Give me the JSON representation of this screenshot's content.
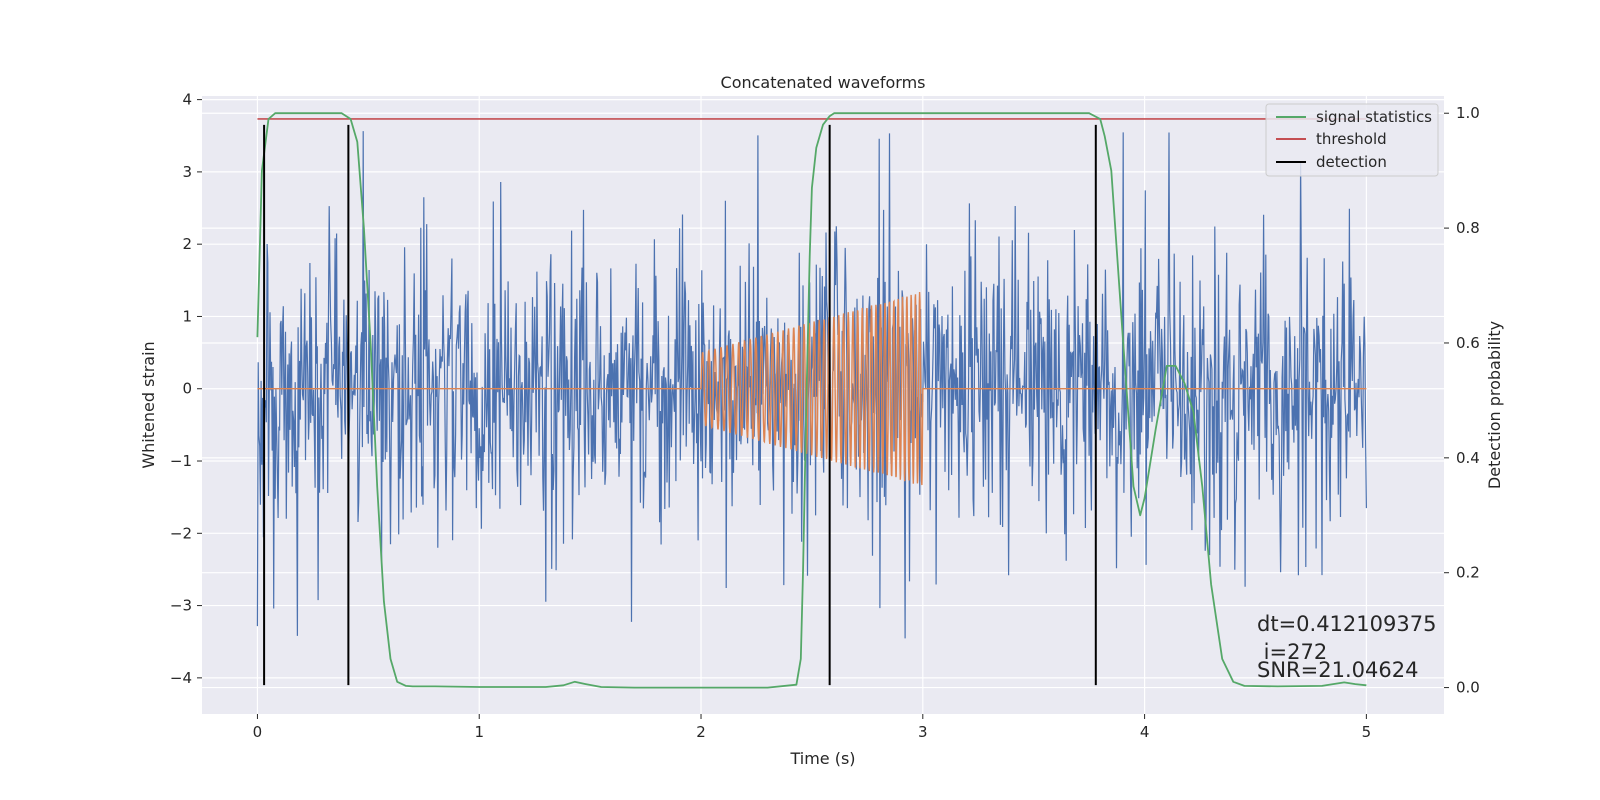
{
  "chart_data": {
    "type": "line",
    "title": "Concatenated waveforms",
    "xlabel": "Time (s)",
    "ylabel": "Whitened strain",
    "y2label": "Detection probability",
    "xlim": [
      -0.25,
      5.35
    ],
    "ylim": [
      -4.5,
      4.05
    ],
    "y2lim": [
      -0.046,
      1.03
    ],
    "x_ticks": [
      0,
      1,
      2,
      3,
      4,
      5
    ],
    "y_ticks": [
      4,
      3,
      2,
      1,
      0,
      -1,
      -2,
      -3,
      -4
    ],
    "y2_ticks": [
      1.0,
      0.8,
      0.6,
      0.4,
      0.2,
      0.0
    ],
    "grid": true,
    "legend_position": "top-right",
    "colors": {
      "plot_background": "#eaeaf2",
      "grid": "#ffffff",
      "strain": "#4c72b0",
      "injection": "#dd8452",
      "signal_statistics": "#55a868",
      "threshold": "#c44e52",
      "detection": "#000000"
    },
    "strain": {
      "x_range": [
        0,
        5
      ],
      "envelope_typical": 1.2,
      "spike_max": 3.7,
      "spike_min": -4.1
    },
    "injection": {
      "x_range": [
        2.0,
        3.0
      ],
      "amplitude_start": 0.5,
      "amplitude_end": 1.35,
      "cycles": 44
    },
    "series": [
      {
        "name": "signal statistics",
        "axis": "right",
        "x": [
          0,
          0.02,
          0.05,
          0.08,
          0.12,
          0.2,
          0.3,
          0.38,
          0.42,
          0.45,
          0.48,
          0.51,
          0.54,
          0.57,
          0.6,
          0.63,
          0.67,
          0.7,
          0.8,
          1.0,
          1.3,
          1.38,
          1.43,
          1.48,
          1.55,
          1.7,
          2.0,
          2.3,
          2.43,
          2.45,
          2.46,
          2.475,
          2.49,
          2.5,
          2.52,
          2.55,
          2.58,
          2.6,
          2.65,
          2.7,
          3.0,
          3.5,
          3.75,
          3.8,
          3.82,
          3.85,
          3.9,
          3.95,
          3.98,
          4.0,
          4.05,
          4.1,
          4.14,
          4.18,
          4.22,
          4.26,
          4.3,
          4.35,
          4.4,
          4.45,
          4.6,
          4.8,
          4.9,
          4.95,
          5.0
        ],
        "values": [
          0.61,
          0.9,
          0.99,
          1.0,
          1.0,
          1.0,
          1.0,
          1.0,
          0.99,
          0.95,
          0.8,
          0.6,
          0.35,
          0.15,
          0.05,
          0.01,
          0.003,
          0.002,
          0.002,
          0.001,
          0.001,
          0.004,
          0.01,
          0.006,
          0.001,
          0.0,
          0.0,
          0.0,
          0.005,
          0.05,
          0.2,
          0.5,
          0.75,
          0.87,
          0.94,
          0.98,
          0.995,
          1.0,
          1.0,
          1.0,
          1.0,
          1.0,
          1.0,
          0.99,
          0.96,
          0.9,
          0.62,
          0.35,
          0.3,
          0.33,
          0.45,
          0.56,
          0.56,
          0.53,
          0.48,
          0.35,
          0.18,
          0.05,
          0.01,
          0.003,
          0.002,
          0.003,
          0.009,
          0.006,
          0.004
        ]
      },
      {
        "name": "threshold",
        "axis": "right",
        "x": [
          0,
          5
        ],
        "values": [
          0.99,
          0.99
        ]
      },
      {
        "name": "detection",
        "axis": "left",
        "x": [
          0.03,
          0.41,
          2.58,
          3.78
        ],
        "y_range": [
          -4.1,
          3.65
        ]
      }
    ],
    "annotations": [
      "dt=0.412109375",
      " i=272",
      "SNR=21.04624"
    ]
  }
}
